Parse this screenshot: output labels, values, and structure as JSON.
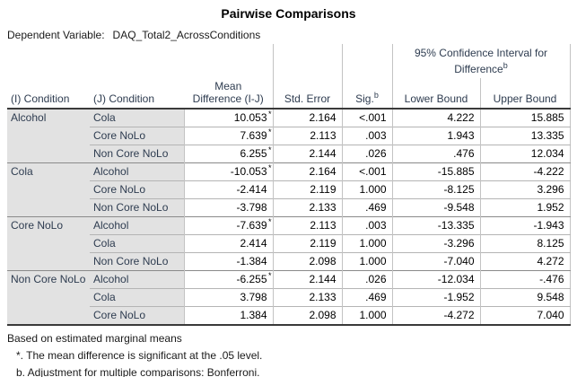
{
  "title": "Pairwise Comparisons",
  "dependent_variable": {
    "label": "Dependent Variable:",
    "value": "DAQ_Total2_AcrossConditions"
  },
  "headers": {
    "i_condition": "(I) Condition",
    "j_condition": "(J) Condition",
    "mean_difference_line1": "Mean",
    "mean_difference_line2": "Difference (I-J)",
    "std_error": "Std. Error",
    "sig": "Sig.",
    "sup_b": "b",
    "ci_line1": "95% Confidence Interval for",
    "ci_line2": "Difference",
    "lower_bound": "Lower Bound",
    "upper_bound": "Upper Bound"
  },
  "significance_marker": "*",
  "groups": [
    {
      "i_condition": "Alcohol",
      "rows": [
        {
          "j_condition": "Cola",
          "mean_difference": "10.053",
          "significant": true,
          "std_error": "2.164",
          "sig": "<.001",
          "lower_bound": "4.222",
          "upper_bound": "15.885"
        },
        {
          "j_condition": "Core NoLo",
          "mean_difference": "7.639",
          "significant": true,
          "std_error": "2.113",
          "sig": ".003",
          "lower_bound": "1.943",
          "upper_bound": "13.335"
        },
        {
          "j_condition": "Non Core NoLo",
          "mean_difference": "6.255",
          "significant": true,
          "std_error": "2.144",
          "sig": ".026",
          "lower_bound": ".476",
          "upper_bound": "12.034"
        }
      ]
    },
    {
      "i_condition": "Cola",
      "rows": [
        {
          "j_condition": "Alcohol",
          "mean_difference": "-10.053",
          "significant": true,
          "std_error": "2.164",
          "sig": "<.001",
          "lower_bound": "-15.885",
          "upper_bound": "-4.222"
        },
        {
          "j_condition": "Core NoLo",
          "mean_difference": "-2.414",
          "significant": false,
          "std_error": "2.119",
          "sig": "1.000",
          "lower_bound": "-8.125",
          "upper_bound": "3.296"
        },
        {
          "j_condition": "Non Core NoLo",
          "mean_difference": "-3.798",
          "significant": false,
          "std_error": "2.133",
          "sig": ".469",
          "lower_bound": "-9.548",
          "upper_bound": "1.952"
        }
      ]
    },
    {
      "i_condition": "Core NoLo",
      "rows": [
        {
          "j_condition": "Alcohol",
          "mean_difference": "-7.639",
          "significant": true,
          "std_error": "2.113",
          "sig": ".003",
          "lower_bound": "-13.335",
          "upper_bound": "-1.943"
        },
        {
          "j_condition": "Cola",
          "mean_difference": "2.414",
          "significant": false,
          "std_error": "2.119",
          "sig": "1.000",
          "lower_bound": "-3.296",
          "upper_bound": "8.125"
        },
        {
          "j_condition": "Non Core NoLo",
          "mean_difference": "-1.384",
          "significant": false,
          "std_error": "2.098",
          "sig": "1.000",
          "lower_bound": "-7.040",
          "upper_bound": "4.272"
        }
      ]
    },
    {
      "i_condition": "Non Core NoLo",
      "rows": [
        {
          "j_condition": "Alcohol",
          "mean_difference": "-6.255",
          "significant": true,
          "std_error": "2.144",
          "sig": ".026",
          "lower_bound": "-12.034",
          "upper_bound": "-.476"
        },
        {
          "j_condition": "Cola",
          "mean_difference": "3.798",
          "significant": false,
          "std_error": "2.133",
          "sig": ".469",
          "lower_bound": "-1.952",
          "upper_bound": "9.548"
        },
        {
          "j_condition": "Core NoLo",
          "mean_difference": "1.384",
          "significant": false,
          "std_error": "2.098",
          "sig": "1.000",
          "lower_bound": "-4.272",
          "upper_bound": "7.040"
        }
      ]
    }
  ],
  "footnotes": [
    "Based on estimated marginal means",
    "*. The mean difference is significant at the .05 level.",
    "b. Adjustment for multiple comparisons: Bonferroni."
  ],
  "colors": {
    "stub_background": "#e2e2e2",
    "label_text": "#2e3c50",
    "data_text": "#000000",
    "grid_line": "#c3c3c3",
    "row_separator": "#b4b4b4",
    "section_separator": "#8a8a8a",
    "rule_line": "#3a3a3a"
  }
}
